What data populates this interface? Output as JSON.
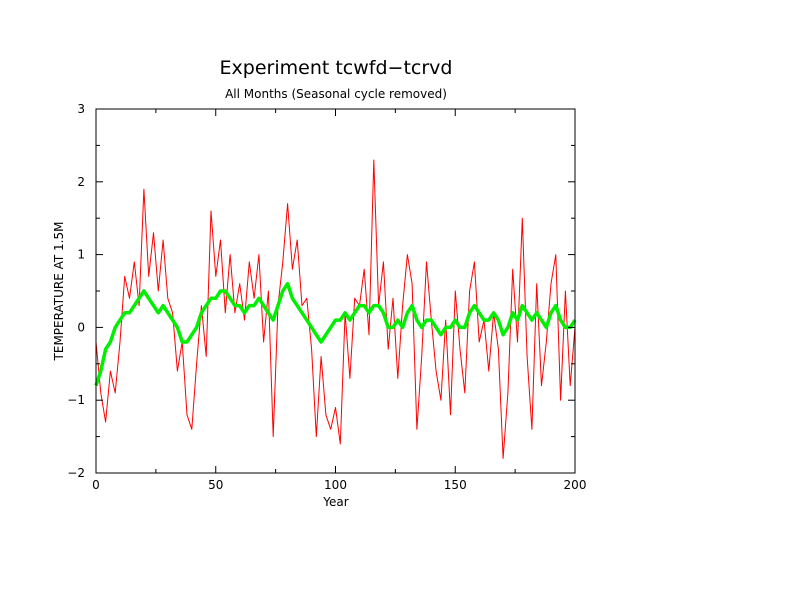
{
  "chart_data": {
    "type": "line",
    "title": "Experiment tcwfd−tcrvd",
    "subtitle": "All Months (Seasonal cycle removed)",
    "xlabel": "Year",
    "ylabel": "TEMPERATURE AT 1.5M",
    "xlim": [
      0,
      200
    ],
    "ylim": [
      -2,
      3
    ],
    "x_ticks": [
      "0",
      "50",
      "100",
      "150",
      "200"
    ],
    "y_ticks": [
      "−2",
      "−1",
      "0",
      "1",
      "2",
      "3"
    ],
    "grid": false,
    "legend": "none",
    "series": [
      {
        "color": "#ff0000",
        "style": "monthly",
        "x": [
          0,
          2,
          4,
          6,
          8,
          10,
          12,
          14,
          16,
          18,
          20,
          22,
          24,
          26,
          28,
          30,
          32,
          34,
          36,
          38,
          40,
          42,
          44,
          46,
          48,
          50,
          52,
          54,
          56,
          58,
          60,
          62,
          64,
          66,
          68,
          70,
          72,
          74,
          76,
          78,
          80,
          82,
          84,
          86,
          88,
          90,
          92,
          94,
          96,
          98,
          100,
          102,
          104,
          106,
          108,
          110,
          112,
          114,
          116,
          118,
          120,
          122,
          124,
          126,
          128,
          130,
          132,
          134,
          136,
          138,
          140,
          142,
          144,
          146,
          148,
          150,
          152,
          154,
          156,
          158,
          160,
          162,
          164,
          166,
          168,
          170,
          172,
          174,
          176,
          178,
          180,
          182,
          184,
          186,
          188,
          190,
          192,
          194,
          196,
          198,
          200
        ],
        "y": [
          -0.2,
          -0.9,
          -1.3,
          -0.6,
          -0.9,
          -0.2,
          0.7,
          0.4,
          0.9,
          0.3,
          1.9,
          0.7,
          1.3,
          0.5,
          1.2,
          0.4,
          0.2,
          -0.6,
          -0.2,
          -1.2,
          -1.4,
          -0.5,
          0.3,
          -0.4,
          1.6,
          0.7,
          1.2,
          0.2,
          1.0,
          0.2,
          0.6,
          0.1,
          0.9,
          0.4,
          1.0,
          -0.2,
          0.5,
          -1.5,
          0.3,
          0.9,
          1.7,
          0.8,
          1.2,
          0.3,
          0.4,
          -0.3,
          -1.5,
          -0.4,
          -1.2,
          -1.4,
          -1.1,
          -1.6,
          0.2,
          -0.7,
          0.4,
          0.3,
          0.8,
          -0.1,
          2.3,
          0.3,
          0.9,
          -0.3,
          0.4,
          -0.7,
          0.3,
          1.0,
          0.6,
          -1.4,
          -0.4,
          0.9,
          0.1,
          -0.6,
          -1.0,
          0.1,
          -1.2,
          0.5,
          -0.3,
          -0.9,
          0.5,
          0.9,
          -0.2,
          0.1,
          -0.6,
          0.2,
          -0.3,
          -1.8,
          -0.9,
          0.8,
          -0.2,
          1.5,
          -0.4,
          -1.4,
          0.6,
          -0.8,
          -0.2,
          0.6,
          1.0,
          -1.0,
          0.5,
          -0.8,
          0.0
        ]
      },
      {
        "color": "#00ee00",
        "style": "smoothed",
        "x": [
          0,
          2,
          4,
          6,
          8,
          10,
          12,
          14,
          16,
          18,
          20,
          22,
          24,
          26,
          28,
          30,
          32,
          34,
          36,
          38,
          40,
          42,
          44,
          46,
          48,
          50,
          52,
          54,
          56,
          58,
          60,
          62,
          64,
          66,
          68,
          70,
          72,
          74,
          76,
          78,
          80,
          82,
          84,
          86,
          88,
          90,
          92,
          94,
          96,
          98,
          100,
          102,
          104,
          106,
          108,
          110,
          112,
          114,
          116,
          118,
          120,
          122,
          124,
          126,
          128,
          130,
          132,
          134,
          136,
          138,
          140,
          142,
          144,
          146,
          148,
          150,
          152,
          154,
          156,
          158,
          160,
          162,
          164,
          166,
          168,
          170,
          172,
          174,
          176,
          178,
          180,
          182,
          184,
          186,
          188,
          190,
          192,
          194,
          196,
          198,
          200
        ],
        "y": [
          -0.8,
          -0.6,
          -0.3,
          -0.2,
          0.0,
          0.1,
          0.2,
          0.2,
          0.3,
          0.4,
          0.5,
          0.4,
          0.3,
          0.2,
          0.3,
          0.2,
          0.1,
          0.0,
          -0.2,
          -0.2,
          -0.1,
          0.0,
          0.2,
          0.3,
          0.4,
          0.4,
          0.5,
          0.5,
          0.4,
          0.3,
          0.3,
          0.2,
          0.3,
          0.3,
          0.4,
          0.3,
          0.2,
          0.1,
          0.3,
          0.5,
          0.6,
          0.4,
          0.3,
          0.2,
          0.1,
          0.0,
          -0.1,
          -0.2,
          -0.1,
          0.0,
          0.1,
          0.1,
          0.2,
          0.1,
          0.2,
          0.3,
          0.3,
          0.2,
          0.3,
          0.3,
          0.2,
          0.0,
          0.0,
          0.1,
          0.0,
          0.2,
          0.3,
          0.1,
          0.0,
          0.1,
          0.1,
          0.0,
          -0.1,
          0.0,
          0.0,
          0.1,
          0.0,
          0.0,
          0.2,
          0.3,
          0.2,
          0.1,
          0.1,
          0.2,
          0.1,
          -0.1,
          0.0,
          0.2,
          0.1,
          0.3,
          0.2,
          0.1,
          0.2,
          0.1,
          0.0,
          0.2,
          0.3,
          0.1,
          0.0,
          0.0,
          0.1
        ]
      }
    ]
  }
}
